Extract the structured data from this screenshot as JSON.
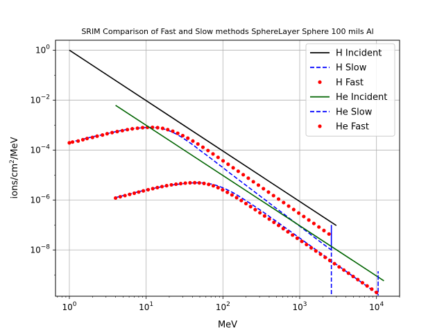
{
  "chart_data": {
    "type": "line",
    "title": "SRIM Comparison of Fast and Slow methods SphereLayer Sphere 100 mils Al",
    "xlabel": "MeV",
    "ylabel_parts": {
      "base": "ions/cm",
      "sup": "2",
      "tail": "/MeV"
    },
    "xscale": "log",
    "yscale": "log",
    "xlim": [
      0.66,
      20000
    ],
    "ylim": [
      1.4e-10,
      2.5
    ],
    "grid": true,
    "legend_position": "top-right",
    "x_ticks": [
      {
        "value": 1,
        "base": "10",
        "exp": "0"
      },
      {
        "value": 10,
        "base": "10",
        "exp": "1"
      },
      {
        "value": 100,
        "base": "10",
        "exp": "2"
      },
      {
        "value": 1000,
        "base": "10",
        "exp": "3"
      },
      {
        "value": 10000,
        "base": "10",
        "exp": "4"
      }
    ],
    "y_ticks": [
      {
        "value": 1,
        "base": "10",
        "exp": "0"
      },
      {
        "value": 0.01,
        "base": "10",
        "exp": "−2"
      },
      {
        "value": 0.0001,
        "base": "10",
        "exp": "−4"
      },
      {
        "value": 1e-06,
        "base": "10",
        "exp": "−6"
      },
      {
        "value": 1e-08,
        "base": "10",
        "exp": "−8"
      }
    ],
    "series": [
      {
        "name": "H Incident",
        "style": "solid",
        "color": "#000000",
        "x": [
          1,
          3000
        ],
        "y": [
          1.0,
          9.5e-08
        ]
      },
      {
        "name": "H Slow",
        "style": "dashed",
        "color": "#0000ff",
        "x": [
          1.0,
          1.2,
          1.4,
          1.7,
          2.0,
          2.4,
          2.9,
          3.4,
          4.1,
          4.9,
          5.9,
          7.0,
          8.4,
          10.0,
          12.0,
          14.4,
          17.2,
          20.6,
          24.6,
          29.4,
          35.2,
          42.1,
          50.3,
          60.2,
          72.0,
          86.1,
          103,
          123,
          147,
          176,
          211,
          252,
          301,
          360,
          431,
          516,
          617,
          738,
          882,
          1055,
          1262,
          1510,
          1806,
          2160,
          2585,
          2585,
          2585
        ],
        "y": [
          0.0002,
          0.00023,
          0.00026,
          0.0003,
          0.00034,
          0.00038,
          0.00043,
          0.00049,
          0.00055,
          0.00062,
          0.00068,
          0.00073,
          0.00077,
          0.0008,
          0.00081,
          0.00077,
          0.00069,
          0.00057,
          0.00044,
          0.00032,
          0.00022,
          0.00015,
          9.7e-05,
          6.5e-05,
          4.3e-05,
          2.8e-05,
          1.85e-05,
          1.2e-05,
          7.9e-06,
          5.2e-06,
          3.4e-06,
          2.25e-06,
          1.48e-06,
          9.8e-07,
          6.4e-07,
          4.2e-07,
          2.8e-07,
          1.83e-07,
          1.2e-07,
          7.9e-08,
          5.2e-08,
          3.4e-08,
          2.25e-08,
          1.48e-08,
          1e-08,
          1e-07,
          1.5e-10
        ]
      },
      {
        "name": "H Fast",
        "style": "dots",
        "color": "#ff0000",
        "x": [
          1.0,
          1.1,
          1.3,
          1.5,
          1.7,
          2.0,
          2.3,
          2.7,
          3.1,
          3.6,
          4.2,
          4.9,
          5.7,
          6.6,
          7.7,
          9.0,
          10.4,
          12.1,
          14.1,
          16.4,
          19.1,
          22.2,
          25.8,
          30.0,
          34.9,
          40.6,
          47.2,
          54.9,
          63.9,
          74.3,
          86.4,
          100.5,
          116.9,
          136.0,
          158.2,
          184.0,
          214.1,
          249.0,
          289.7,
          337.0,
          392.0,
          456.0,
          530.5,
          617.1,
          717.8,
          835.0,
          971.3,
          1130,
          1314,
          1529,
          1778,
          2069,
          2406
        ],
        "y": [
          0.000195,
          0.00021,
          0.00023,
          0.00026,
          0.00029,
          0.00032,
          0.00036,
          0.0004,
          0.00045,
          0.0005,
          0.00055,
          0.0006,
          0.00066,
          0.00071,
          0.00075,
          0.00079,
          0.00081,
          0.00081,
          0.00079,
          0.00074,
          0.00066,
          0.00057,
          0.00047,
          0.00038,
          0.0003,
          0.00023,
          0.000175,
          0.00013,
          9.6e-05,
          7e-05,
          5.1e-05,
          3.7e-05,
          2.7e-05,
          1.95e-05,
          1.42e-05,
          1.03e-05,
          7.5e-06,
          5.4e-06,
          3.95e-06,
          2.85e-06,
          2.07e-06,
          1.5e-06,
          1.09e-06,
          7.9e-07,
          5.7e-07,
          4.15e-07,
          3e-07,
          2.18e-07,
          1.58e-07,
          1.15e-07,
          8.3e-08,
          6e-08,
          4.35e-08
        ]
      },
      {
        "name": "He Incident",
        "style": "solid",
        "color": "#006400",
        "x": [
          4,
          12500
        ],
        "y": [
          0.0062,
          5.8e-10
        ]
      },
      {
        "name": "He Slow",
        "style": "dashed",
        "color": "#0000ff",
        "x": [
          4.0,
          4.8,
          5.7,
          6.8,
          8.2,
          9.8,
          11.7,
          14.0,
          16.8,
          20.1,
          24.0,
          28.8,
          34.4,
          41.2,
          49.3,
          59.0,
          70.6,
          84.5,
          101,
          121,
          145,
          173,
          207,
          248,
          297,
          355,
          425,
          509,
          609,
          729,
          872,
          1044,
          1249,
          1495,
          1789,
          2141,
          2562,
          3066,
          3669,
          4391,
          5255,
          6288,
          7525,
          9006,
          10500,
          10500,
          10500
        ],
        "y": [
          1.25e-06,
          1.45e-06,
          1.65e-06,
          1.9e-06,
          2.2e-06,
          2.5e-06,
          2.8e-06,
          3.15e-06,
          3.5e-06,
          3.85e-06,
          4.15e-06,
          4.45e-06,
          4.7e-06,
          4.85e-06,
          4.9e-06,
          4.75e-06,
          4.35e-06,
          3.75e-06,
          3.05e-06,
          2.35e-06,
          1.75e-06,
          1.25e-06,
          8.8e-07,
          6.1e-07,
          4.2e-07,
          2.9e-07,
          1.95e-07,
          1.32e-07,
          8.9e-08,
          6e-08,
          4.05e-08,
          2.72e-08,
          1.83e-08,
          1.23e-08,
          8.3e-09,
          5.6e-09,
          3.75e-09,
          2.52e-09,
          1.7e-09,
          1.14e-09,
          7.7e-10,
          5.2e-10,
          3.5e-10,
          2.35e-10,
          1.7e-10,
          1.4e-09,
          1.5e-10
        ]
      },
      {
        "name": "He Fast",
        "style": "dots",
        "color": "#ff0000",
        "x": [
          4.0,
          4.6,
          5.3,
          6.1,
          7.0,
          8.0,
          9.2,
          10.6,
          12.2,
          14.0,
          16.1,
          18.5,
          21.3,
          24.5,
          28.2,
          32.4,
          37.3,
          42.9,
          49.3,
          56.7,
          65.2,
          75.0,
          86.3,
          99.2,
          114.1,
          131.2,
          150.9,
          173.5,
          199.5,
          229.4,
          263.8,
          303.4,
          348.9,
          401.2,
          461.4,
          530.6,
          610.2,
          701.7,
          807.0,
          928.0,
          1067,
          1227,
          1411,
          1623,
          1866,
          2146,
          2468,
          2838,
          3264,
          3754,
          4317,
          4964,
          5709,
          6565,
          7550,
          8683,
          9985
        ],
        "y": [
          1.2e-06,
          1.35e-06,
          1.5e-06,
          1.68e-06,
          1.87e-06,
          2.08e-06,
          2.32e-06,
          2.58e-06,
          2.86e-06,
          3.15e-06,
          3.45e-06,
          3.75e-06,
          4.05e-06,
          4.3e-06,
          4.55e-06,
          4.75e-06,
          4.88e-06,
          4.92e-06,
          4.85e-06,
          4.62e-06,
          4.22e-06,
          3.7e-06,
          3.12e-06,
          2.55e-06,
          2.03e-06,
          1.6e-06,
          1.24e-06,
          9.5e-07,
          7.2e-07,
          5.45e-07,
          4.1e-07,
          3.08e-07,
          2.3e-07,
          1.72e-07,
          1.28e-07,
          9.6e-08,
          7.1e-08,
          5.3e-08,
          3.95e-08,
          2.95e-08,
          2.2e-08,
          1.64e-08,
          1.22e-08,
          9.1e-09,
          6.8e-09,
          5.05e-09,
          3.78e-09,
          2.82e-09,
          2.1e-09,
          1.57e-09,
          1.17e-09,
          8.7e-10,
          6.5e-10,
          4.85e-10,
          3.62e-10,
          2.7e-10,
          2e-10
        ]
      }
    ]
  }
}
